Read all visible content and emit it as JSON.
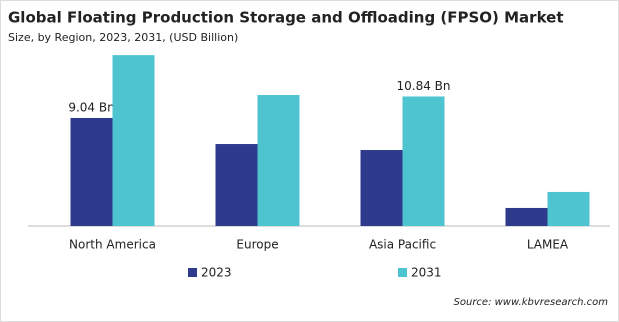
{
  "chart_data": {
    "type": "bar",
    "title": "Global Floating Production Storage and Offloading (FPSO) Market",
    "subtitle": "Size, by Region, 2023, 2031, (USD Billion)",
    "categories": [
      "North America",
      "Europe",
      "Asia Pacific",
      "LAMEA"
    ],
    "series": [
      {
        "name": "2023",
        "color": "#2e3a8c",
        "values": [
          9.04,
          6.86,
          6.36,
          1.51
        ],
        "value_labels": [
          "9.04 Bn",
          null,
          null,
          null
        ]
      },
      {
        "name": "2031",
        "color": "#4dc4cf",
        "values": [
          14.3,
          10.96,
          10.84,
          2.85
        ],
        "value_labels": [
          null,
          null,
          "10.84 Bn",
          null
        ]
      }
    ],
    "source": "Source: www.kbvresearch.com"
  }
}
